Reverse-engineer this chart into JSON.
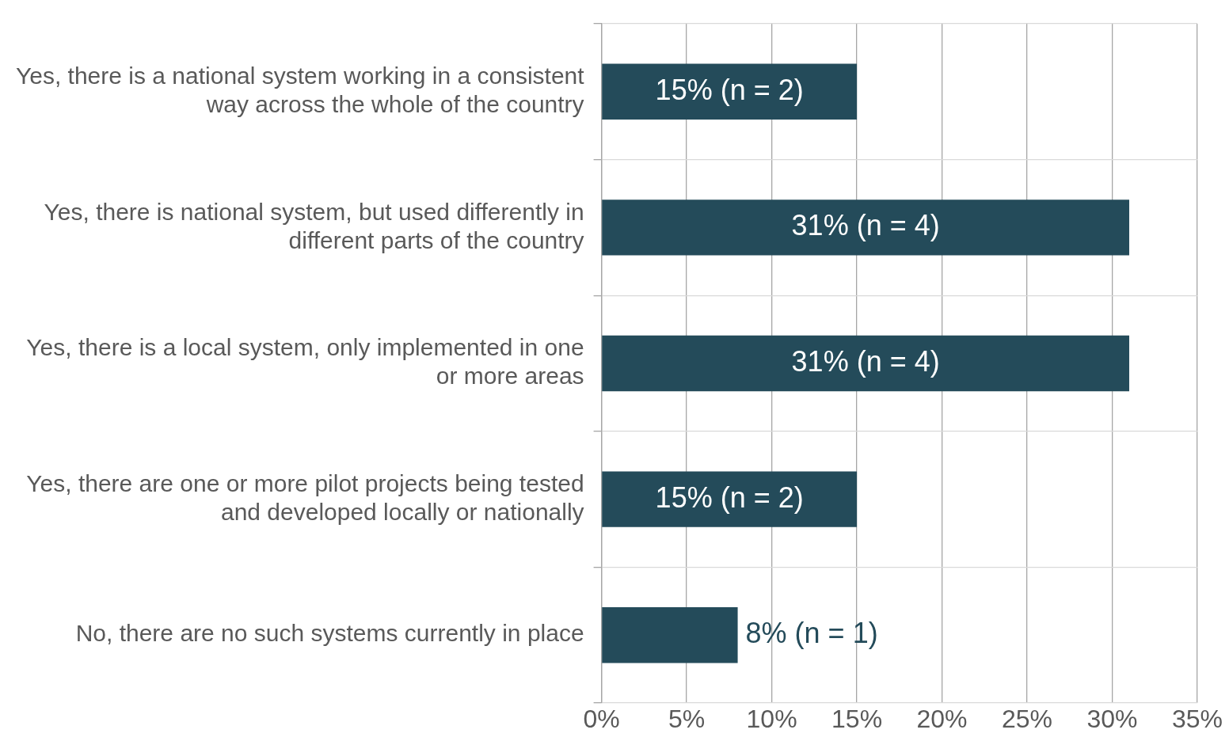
{
  "chart_data": {
    "type": "bar",
    "orientation": "horizontal",
    "categories": [
      "Yes, there is a national system working in a consistent way across the whole of the country",
      "Yes, there is national system, but used differently in different parts of the country",
      "Yes, there is a local system, only implemented in one or more areas",
      "Yes, there are one or more pilot projects being tested and developed locally or nationally",
      "No, there are no such systems currently in place"
    ],
    "values": [
      15,
      31,
      31,
      15,
      8
    ],
    "value_labels": [
      "15% (n = 2)",
      "31% (n = 4)",
      "31% (n = 4)",
      "15% (n = 2)",
      "8% (n = 1)"
    ],
    "color": "#244b5a",
    "xlim": [
      0,
      35
    ],
    "xticks": [
      {
        "value": 0,
        "label": "0%"
      },
      {
        "value": 5,
        "label": "5%"
      },
      {
        "value": 10,
        "label": "10%"
      },
      {
        "value": 15,
        "label": "15%"
      },
      {
        "value": 20,
        "label": "20%"
      },
      {
        "value": 25,
        "label": "25%"
      },
      {
        "value": 30,
        "label": "30%"
      },
      {
        "value": 35,
        "label": "35%"
      }
    ],
    "grid": true
  }
}
